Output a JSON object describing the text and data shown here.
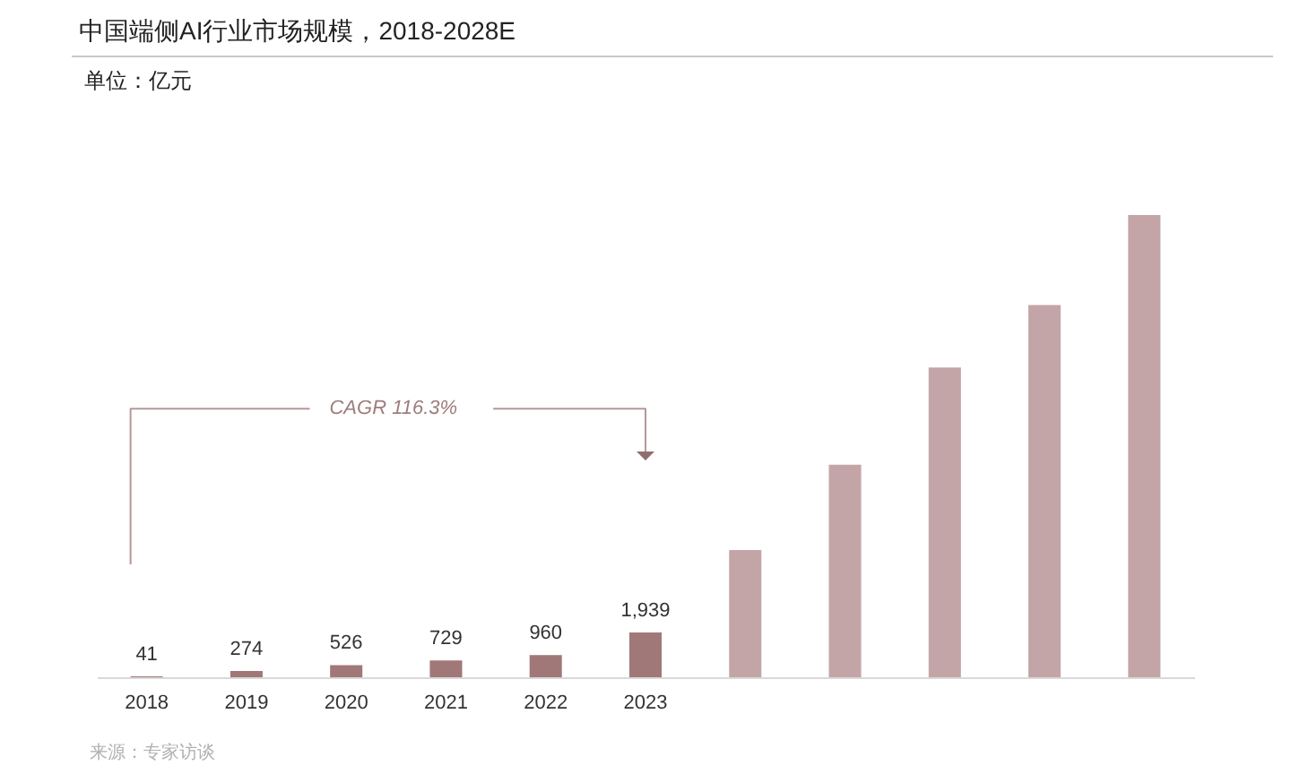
{
  "chart_data": {
    "type": "bar",
    "title": "中国端侧AI行业市场规模，2018-2028E",
    "subtitle": "单位：亿元",
    "annotations": [
      "CAGR 116.3%",
      "来源：专家访谈"
    ],
    "categories": [
      "2018",
      "2019",
      "2020",
      "2021",
      "2022",
      "2023",
      null,
      null,
      null,
      null,
      null
    ],
    "values": [
      41,
      274,
      526,
      729,
      960,
      1939,
      5500,
      9200,
      13400,
      16100,
      20000
    ],
    "colors": [
      "#a07878",
      "#a07878",
      "#a07878",
      "#a07878",
      "#a07878",
      "#a07878",
      "#c4a5a7",
      "#c4a5a7",
      "#c4a5a7",
      "#c4a5a7",
      "#c4a5a7"
    ],
    "value_labels": [
      "41",
      "274",
      "526",
      "729",
      "960",
      "1,939",
      null,
      null,
      null,
      null,
      null
    ]
  }
}
